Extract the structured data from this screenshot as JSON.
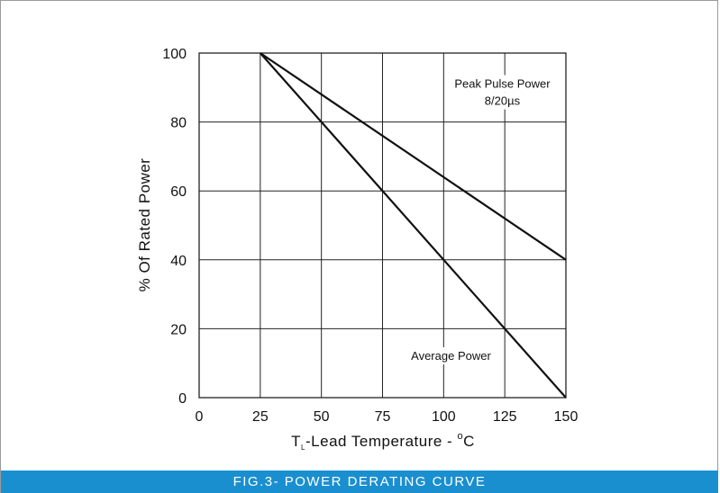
{
  "figure": {
    "caption": "FIG.3- POWER DERATING CURVE",
    "caption_bg": "#1a8fd0"
  },
  "chart_data": {
    "type": "line",
    "title": "",
    "xlabel": {
      "prefix": "T",
      "subscript": "L",
      "rest": "-Lead  Temperature - ",
      "degree": "o",
      "unit": "C"
    },
    "ylabel": "% Of  Rated  Power",
    "xlim": [
      0,
      150
    ],
    "ylim": [
      0,
      100
    ],
    "xticks": [
      0,
      25,
      50,
      75,
      100,
      125,
      150
    ],
    "yticks": [
      0,
      20,
      40,
      60,
      80,
      100
    ],
    "grid": true,
    "line_color": "#111111",
    "series": [
      {
        "name": "Peak  Pulse Power",
        "x": [
          25,
          150
        ],
        "y": [
          100,
          40
        ]
      },
      {
        "name": "Average Power",
        "x": [
          25,
          150
        ],
        "y": [
          100,
          0
        ]
      }
    ],
    "annotations": [
      {
        "text": "Peak  Pulse Power",
        "x": 124,
        "y": 91
      },
      {
        "text": "8/20µs",
        "x": 124,
        "y": 86
      },
      {
        "text": "Average Power",
        "x": 103,
        "y": 12
      }
    ]
  }
}
